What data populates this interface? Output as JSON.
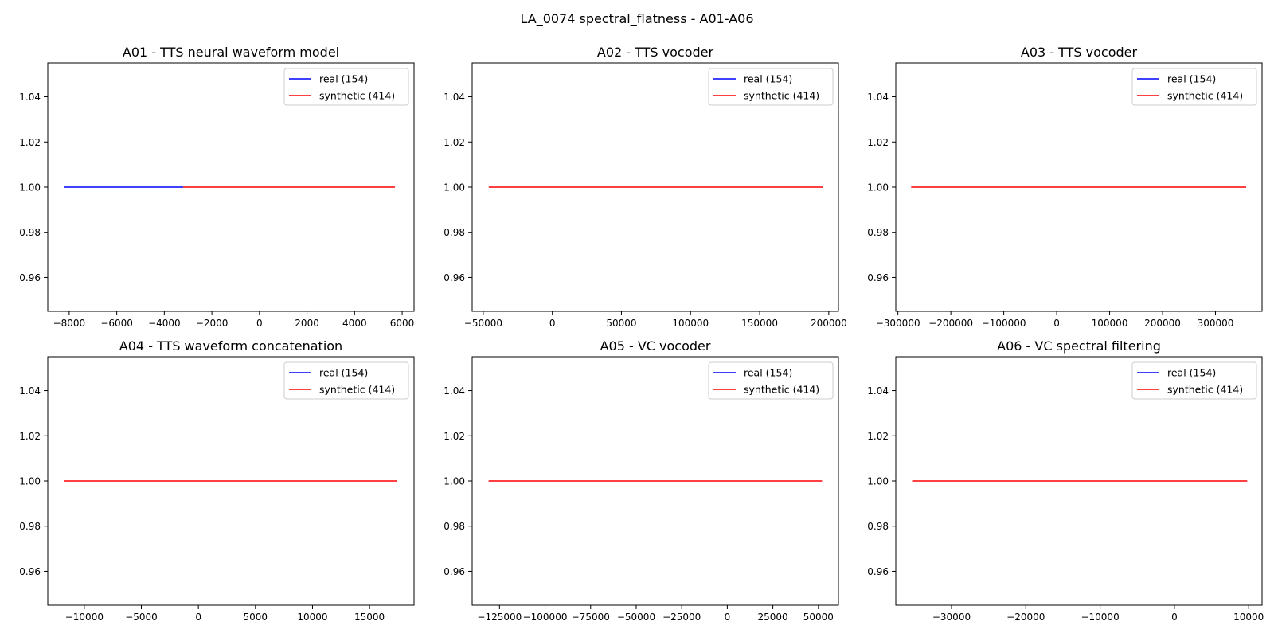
{
  "figure": {
    "title": "LA_0074 spectral_flatness - A01-A06"
  },
  "colors": {
    "real": "#0000ff",
    "synthetic": "#ff0000",
    "axes": "#000000",
    "legend_border": "#cccccc"
  },
  "chart_data": [
    {
      "type": "line",
      "title": "A01 - TTS neural waveform model",
      "xlabel": "",
      "ylabel": "",
      "xlim": [
        -8900,
        6500
      ],
      "ylim": [
        0.945,
        1.055
      ],
      "xticks": [
        -8000,
        -6000,
        -4000,
        -2000,
        0,
        2000,
        4000,
        6000
      ],
      "xtick_labels": [
        "−8000",
        "−6000",
        "−4000",
        "−2000",
        "0",
        "2000",
        "4000",
        "6000"
      ],
      "yticks": [
        0.96,
        0.98,
        1.0,
        1.02,
        1.04
      ],
      "ytick_labels": [
        "0.96",
        "0.98",
        "1.00",
        "1.02",
        "1.04"
      ],
      "legend": "top-right",
      "series": [
        {
          "name": "real (154)",
          "color": "#0000ff",
          "x": [
            -8200,
            -3200
          ],
          "y": [
            1.0,
            1.0
          ]
        },
        {
          "name": "synthetic (414)",
          "color": "#ff0000",
          "x": [
            -3200,
            5700
          ],
          "y": [
            1.0,
            1.0
          ]
        }
      ]
    },
    {
      "type": "line",
      "title": "A02 - TTS vocoder",
      "xlabel": "",
      "ylabel": "",
      "xlim": [
        -58000,
        207000
      ],
      "ylim": [
        0.945,
        1.055
      ],
      "xticks": [
        -50000,
        0,
        50000,
        100000,
        150000,
        200000
      ],
      "xtick_labels": [
        "−50000",
        "0",
        "50000",
        "100000",
        "150000",
        "200000"
      ],
      "yticks": [
        0.96,
        0.98,
        1.0,
        1.02,
        1.04
      ],
      "ytick_labels": [
        "0.96",
        "0.98",
        "1.00",
        "1.02",
        "1.04"
      ],
      "legend": "top-right",
      "series": [
        {
          "name": "real (154)",
          "color": "#0000ff",
          "x": [
            -46000,
            -46000
          ],
          "y": [
            1.0,
            1.0
          ]
        },
        {
          "name": "synthetic (414)",
          "color": "#ff0000",
          "x": [
            -46000,
            196000
          ],
          "y": [
            1.0,
            1.0
          ]
        }
      ]
    },
    {
      "type": "line",
      "title": "A03 - TTS vocoder",
      "xlabel": "",
      "ylabel": "",
      "xlim": [
        -304000,
        388000
      ],
      "ylim": [
        0.945,
        1.055
      ],
      "xticks": [
        -300000,
        -200000,
        -100000,
        0,
        100000,
        200000,
        300000
      ],
      "xtick_labels": [
        "−300000",
        "−200000",
        "−100000",
        "0",
        "100000",
        "200000",
        "300000"
      ],
      "yticks": [
        0.96,
        0.98,
        1.0,
        1.02,
        1.04
      ],
      "ytick_labels": [
        "0.96",
        "0.98",
        "1.00",
        "1.02",
        "1.04"
      ],
      "legend": "top-right",
      "series": [
        {
          "name": "real (154)",
          "color": "#0000ff",
          "x": [
            -275000,
            -275000
          ],
          "y": [
            1.0,
            1.0
          ]
        },
        {
          "name": "synthetic (414)",
          "color": "#ff0000",
          "x": [
            -275000,
            358000
          ],
          "y": [
            1.0,
            1.0
          ]
        }
      ]
    },
    {
      "type": "line",
      "title": "A04 - TTS waveform concatenation",
      "xlabel": "",
      "ylabel": "",
      "xlim": [
        -13200,
        18900
      ],
      "ylim": [
        0.945,
        1.055
      ],
      "xticks": [
        -10000,
        -5000,
        0,
        5000,
        10000,
        15000
      ],
      "xtick_labels": [
        "−10000",
        "−5000",
        "0",
        "5000",
        "10000",
        "15000"
      ],
      "yticks": [
        0.96,
        0.98,
        1.0,
        1.02,
        1.04
      ],
      "ytick_labels": [
        "0.96",
        "0.98",
        "1.00",
        "1.02",
        "1.04"
      ],
      "legend": "top-right",
      "series": [
        {
          "name": "real (154)",
          "color": "#0000ff",
          "x": [
            -11800,
            -11800
          ],
          "y": [
            1.0,
            1.0
          ]
        },
        {
          "name": "synthetic (414)",
          "color": "#ff0000",
          "x": [
            -11800,
            17400
          ],
          "y": [
            1.0,
            1.0
          ]
        }
      ]
    },
    {
      "type": "line",
      "title": "A05 - VC vocoder",
      "xlabel": "",
      "ylabel": "",
      "xlim": [
        -140000,
        61000
      ],
      "ylim": [
        0.945,
        1.055
      ],
      "xticks": [
        -125000,
        -100000,
        -75000,
        -50000,
        -25000,
        0,
        25000,
        50000
      ],
      "xtick_labels": [
        "−125000",
        "−100000",
        "−75000",
        "−50000",
        "−25000",
        "0",
        "25000",
        "50000"
      ],
      "yticks": [
        0.96,
        0.98,
        1.0,
        1.02,
        1.04
      ],
      "ytick_labels": [
        "0.96",
        "0.98",
        "1.00",
        "1.02",
        "1.04"
      ],
      "legend": "top-right",
      "series": [
        {
          "name": "real (154)",
          "color": "#0000ff",
          "x": [
            -131000,
            -131000
          ],
          "y": [
            1.0,
            1.0
          ]
        },
        {
          "name": "synthetic (414)",
          "color": "#ff0000",
          "x": [
            -131000,
            52000
          ],
          "y": [
            1.0,
            1.0
          ]
        }
      ]
    },
    {
      "type": "line",
      "title": "A06 - VC spectral filtering",
      "xlabel": "",
      "ylabel": "",
      "xlim": [
        -37500,
        11800
      ],
      "ylim": [
        0.945,
        1.055
      ],
      "xticks": [
        -30000,
        -20000,
        -10000,
        0,
        10000
      ],
      "xtick_labels": [
        "−30000",
        "−20000",
        "−10000",
        "0",
        "10000"
      ],
      "yticks": [
        0.96,
        0.98,
        1.0,
        1.02,
        1.04
      ],
      "ytick_labels": [
        "0.96",
        "0.98",
        "1.00",
        "1.02",
        "1.04"
      ],
      "legend": "top-right",
      "series": [
        {
          "name": "real (154)",
          "color": "#0000ff",
          "x": [
            -35300,
            -35300
          ],
          "y": [
            1.0,
            1.0
          ]
        },
        {
          "name": "synthetic (414)",
          "color": "#ff0000",
          "x": [
            -35300,
            9800
          ],
          "y": [
            1.0,
            1.0
          ]
        }
      ]
    }
  ]
}
